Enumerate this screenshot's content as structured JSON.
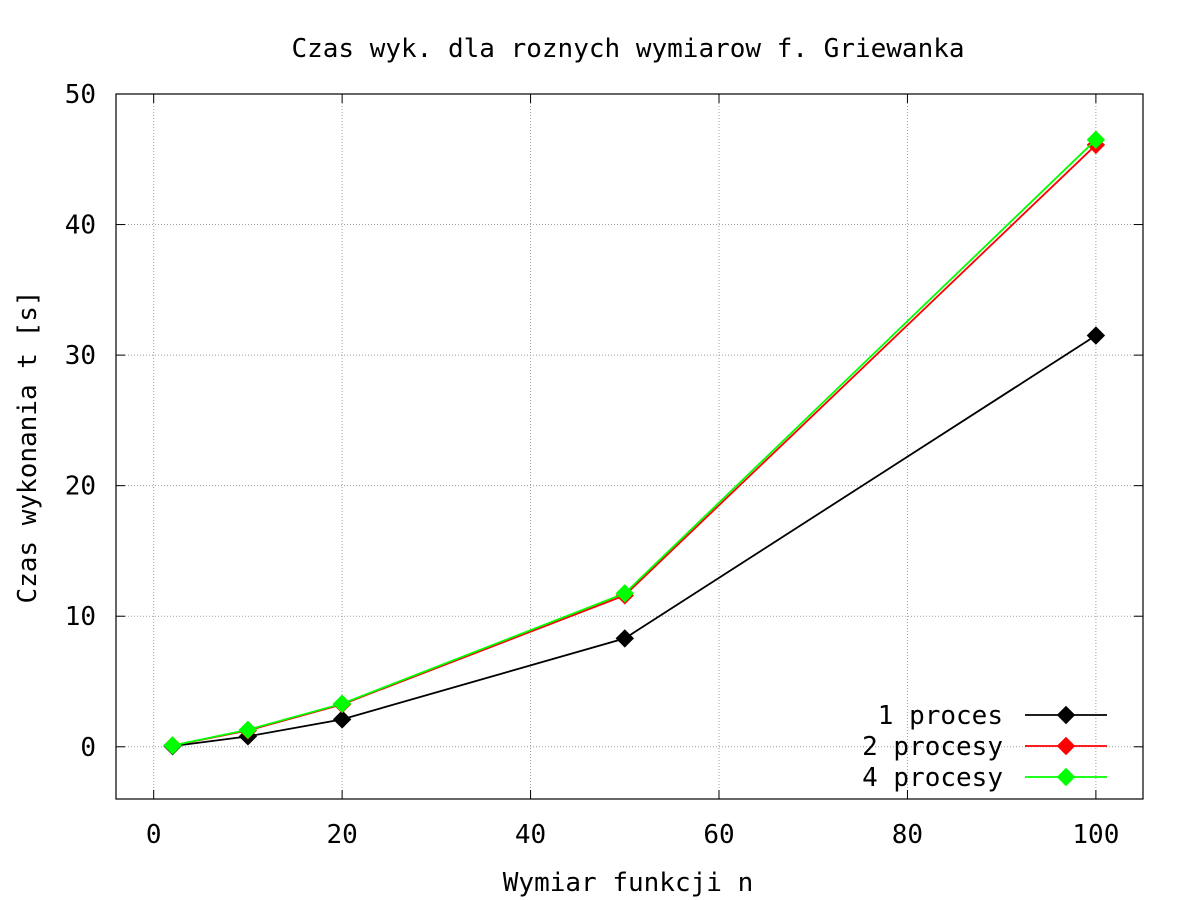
{
  "chart_data": {
    "type": "line",
    "title": "Czas wyk. dla roznych wymiarow f. Griewanka",
    "xlabel": "Wymiar funkcji n",
    "ylabel": "Czas wykonania t [s]",
    "xlim": [
      -4,
      105
    ],
    "ylim": [
      -4,
      50
    ],
    "xticks": [
      0,
      20,
      40,
      60,
      80,
      100
    ],
    "yticks": [
      0,
      10,
      20,
      30,
      40,
      50
    ],
    "grid": true,
    "legend_position": "bottom-right",
    "x": [
      2,
      10,
      20,
      50,
      100
    ],
    "series": [
      {
        "name": "1 proces",
        "color": "#000000",
        "marker": "diamond",
        "values": [
          0.05,
          0.8,
          2.1,
          8.3,
          31.5
        ]
      },
      {
        "name": "2 procesy",
        "color": "#ff0000",
        "marker": "diamond",
        "values": [
          0.1,
          1.25,
          3.25,
          11.6,
          46.1
        ]
      },
      {
        "name": "4 procesy",
        "color": "#00ff00",
        "marker": "diamond",
        "values": [
          0.1,
          1.3,
          3.3,
          11.75,
          46.5
        ]
      }
    ]
  }
}
